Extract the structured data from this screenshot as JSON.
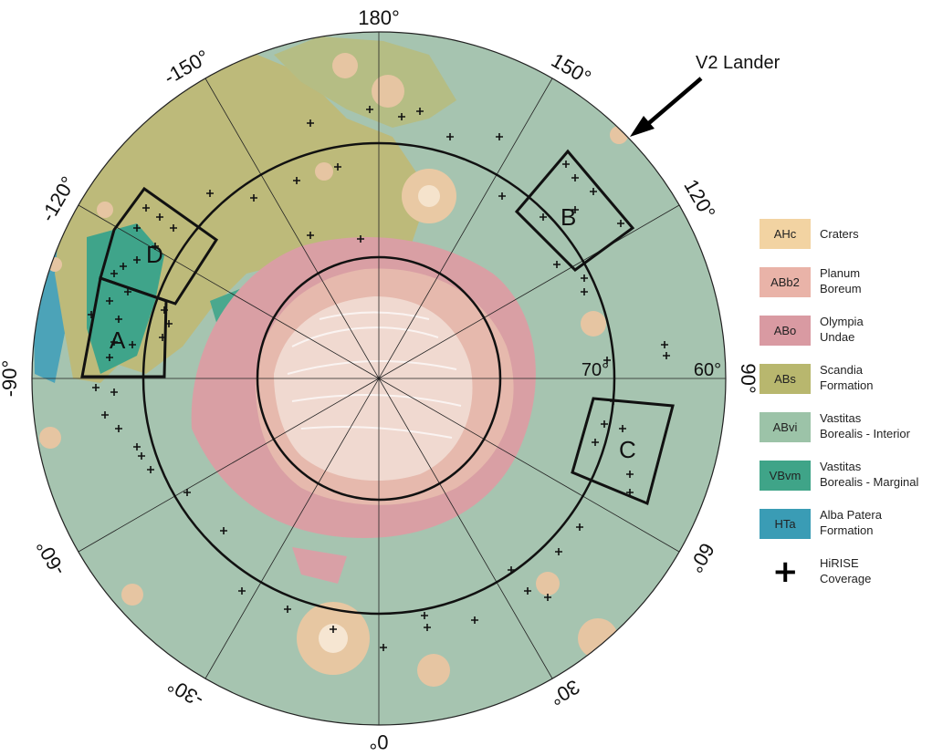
{
  "map": {
    "longitude_labels": [
      "180°",
      "150°",
      "120°",
      "90°",
      "60°",
      "30°",
      "0°",
      "-30°",
      "-60°",
      "-90°",
      "-120°",
      "-150°"
    ],
    "latitude_labels": [
      "70°",
      "60°"
    ],
    "study_areas": [
      "A",
      "B",
      "C",
      "D"
    ],
    "annotation": "V2 Lander"
  },
  "legend": {
    "items": [
      {
        "code": "AHc",
        "label": "Craters",
        "color": "#f2d3a2"
      },
      {
        "code": "ABb2",
        "label": "Planum\nBoreum",
        "color": "#e9b3a8"
      },
      {
        "code": "ABo",
        "label": "Olympia\nUndae",
        "color": "#d99aa2"
      },
      {
        "code": "ABs",
        "label": "Scandia\nFormation",
        "color": "#b8b76e"
      },
      {
        "code": "ABvi",
        "label": "Vastitas\nBorealis - Interior",
        "color": "#9cc3a8"
      },
      {
        "code": "VBvm",
        "label": "Vastitas\nBorealis - Marginal",
        "color": "#3fa488"
      },
      {
        "code": "HTa",
        "label": "Alba Patera\nFormation",
        "color": "#3a9cb5"
      }
    ],
    "hirise": {
      "symbol": "+",
      "label": "HiRISE\nCoverage"
    }
  }
}
